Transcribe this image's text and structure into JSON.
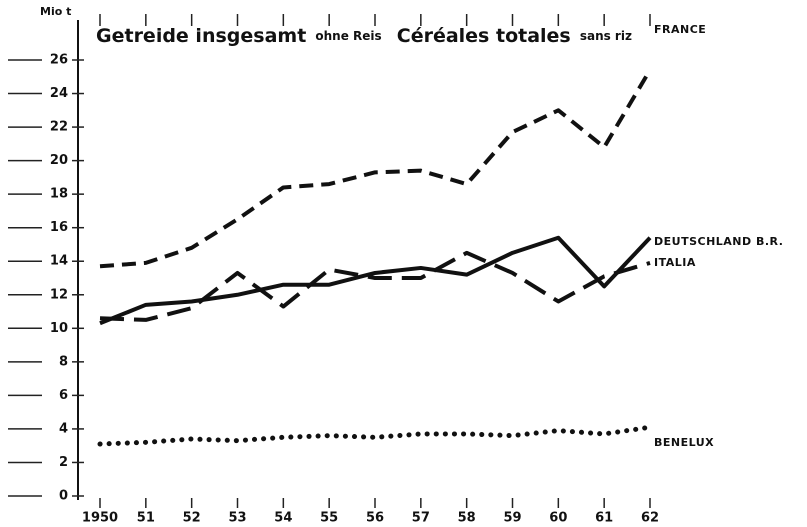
{
  "chart_data": {
    "type": "line",
    "unit": "Mio t",
    "title_de": "Getreide insgesamt",
    "title_de_note": "ohne Reis",
    "title_fr": "Céréales totales",
    "title_fr_note": "sans riz",
    "categories": [
      "1950",
      "51",
      "52",
      "53",
      "54",
      "55",
      "56",
      "57",
      "58",
      "59",
      "60",
      "61",
      "62"
    ],
    "ylim": [
      0,
      26
    ],
    "yticks": [
      0,
      2,
      4,
      6,
      8,
      10,
      12,
      14,
      16,
      18,
      20,
      22,
      24,
      26
    ],
    "series": [
      {
        "name": "FRANCE",
        "color": "#111",
        "line_style": "dashed",
        "values": [
          13.7,
          13.9,
          14.8,
          16.5,
          18.4,
          18.6,
          19.3,
          19.4,
          18.6,
          21.7,
          23.0,
          20.8,
          25.4
        ]
      },
      {
        "name": "DEUTSCHLAND B.R.",
        "color": "#111",
        "line_style": "solid",
        "values": [
          10.3,
          11.4,
          11.6,
          12.0,
          12.6,
          12.6,
          13.3,
          13.6,
          13.2,
          14.5,
          15.4,
          12.5,
          15.4
        ]
      },
      {
        "name": "ITALIA",
        "color": "#111",
        "line_style": "longdash",
        "values": [
          10.6,
          10.5,
          11.2,
          13.3,
          11.3,
          13.5,
          13.0,
          13.0,
          14.5,
          13.3,
          11.6,
          13.1,
          13.9
        ]
      },
      {
        "name": "BENELUX",
        "color": "#111",
        "line_style": "dotted",
        "values": [
          3.1,
          3.2,
          3.4,
          3.3,
          3.5,
          3.6,
          3.5,
          3.7,
          3.7,
          3.6,
          3.9,
          3.7,
          4.1
        ]
      }
    ]
  }
}
